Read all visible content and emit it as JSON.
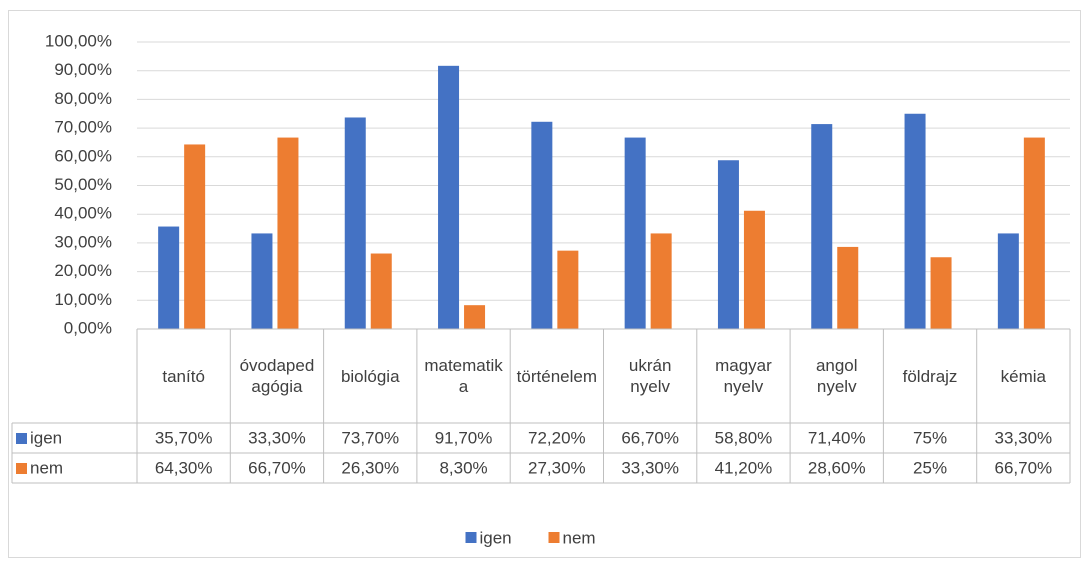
{
  "chart_data": {
    "type": "bar",
    "categories": [
      "tanító",
      "óvodapedagógia",
      "biológia",
      "matematika",
      "történelem",
      "ukrán nyelv",
      "magyar nyelv",
      "angol nyelv",
      "földrajz",
      "kémia"
    ],
    "series": [
      {
        "name": "igen",
        "color": "#4472c4",
        "values": [
          35.7,
          33.3,
          73.7,
          91.7,
          72.2,
          66.7,
          58.8,
          71.4,
          75,
          33.3
        ],
        "value_labels": [
          "35,70%",
          "33,30%",
          "73,70%",
          "91,70%",
          "72,20%",
          "66,70%",
          "58,80%",
          "71,40%",
          "75%",
          "33,30%"
        ]
      },
      {
        "name": "nem",
        "color": "#ed7d31",
        "values": [
          64.3,
          66.7,
          26.3,
          8.3,
          27.3,
          33.3,
          41.2,
          28.6,
          25,
          66.7
        ],
        "value_labels": [
          "64,30%",
          "66,70%",
          "26,30%",
          "8,30%",
          "27,30%",
          "33,30%",
          "41,20%",
          "28,60%",
          "25%",
          "66,70%"
        ]
      }
    ],
    "ylim": [
      0,
      100
    ],
    "yticks": [
      {
        "value": 0,
        "label": "0,00%"
      },
      {
        "value": 10,
        "label": "10,00%"
      },
      {
        "value": 20,
        "label": "20,00%"
      },
      {
        "value": 30,
        "label": "30,00%"
      },
      {
        "value": 40,
        "label": "40,00%"
      },
      {
        "value": 50,
        "label": "50,00%"
      },
      {
        "value": 60,
        "label": "60,00%"
      },
      {
        "value": 70,
        "label": "70,00%"
      },
      {
        "value": 80,
        "label": "80,00%"
      },
      {
        "value": 90,
        "label": "90,00%"
      },
      {
        "value": 100,
        "label": "100,00%"
      }
    ],
    "grid": true,
    "legend": "bottom"
  }
}
